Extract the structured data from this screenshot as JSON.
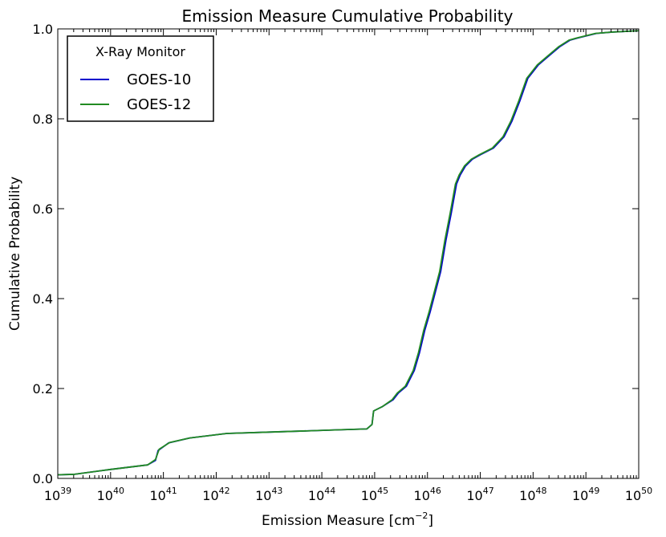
{
  "chart_data": {
    "type": "line",
    "title": "Emission Measure Cumulative Probability",
    "xlabel": "Emission Measure [cm",
    "xlabel_exponent": "−2",
    "xlabel_close": "]",
    "ylabel": "Cumulative Probability",
    "xscale": "log",
    "xlim_exp": [
      39,
      50
    ],
    "ylim": [
      0.0,
      1.0
    ],
    "x_tick_base": "10",
    "x_tick_exponents": [
      "39",
      "40",
      "41",
      "42",
      "43",
      "44",
      "45",
      "46",
      "47",
      "48",
      "49",
      "50"
    ],
    "y_tick_labels": [
      "0.0",
      "0.2",
      "0.4",
      "0.6",
      "0.8",
      "1.0"
    ],
    "y_tick_values": [
      0.0,
      0.2,
      0.4,
      0.6,
      0.8,
      1.0
    ],
    "legend": {
      "title": "X-Ray Monitor",
      "placement": "top-left",
      "entries": [
        "GOES-10",
        "GOES-12"
      ]
    },
    "series": [
      {
        "name": "GOES-10",
        "color": "#0000cc",
        "log10_x": [
          39.0,
          39.3,
          40.0,
          40.7,
          40.85,
          40.9,
          41.1,
          41.5,
          42.2,
          43.0,
          43.8,
          44.3,
          44.85,
          44.95,
          44.98,
          45.15,
          45.35,
          45.45,
          45.6,
          45.75,
          45.85,
          45.95,
          46.05,
          46.15,
          46.25,
          46.35,
          46.45,
          46.55,
          46.62,
          46.72,
          46.85,
          47.0,
          47.25,
          47.45,
          47.6,
          47.75,
          47.9,
          48.1,
          48.3,
          48.5,
          48.7,
          48.85,
          49.2,
          49.5,
          50.0
        ],
        "y": [
          0.008,
          0.009,
          0.02,
          0.03,
          0.04,
          0.062,
          0.079,
          0.09,
          0.1,
          0.103,
          0.106,
          0.108,
          0.11,
          0.12,
          0.15,
          0.16,
          0.175,
          0.19,
          0.205,
          0.24,
          0.28,
          0.33,
          0.37,
          0.415,
          0.46,
          0.53,
          0.59,
          0.655,
          0.675,
          0.695,
          0.71,
          0.72,
          0.735,
          0.76,
          0.795,
          0.84,
          0.89,
          0.92,
          0.94,
          0.96,
          0.975,
          0.98,
          0.99,
          0.993,
          0.996
        ]
      },
      {
        "name": "GOES-12",
        "color": "#228b22",
        "log10_x": [
          39.0,
          39.3,
          40.0,
          40.7,
          40.85,
          40.92,
          41.12,
          41.5,
          42.2,
          43.0,
          43.8,
          44.3,
          44.85,
          44.95,
          44.98,
          45.15,
          45.33,
          45.43,
          45.58,
          45.73,
          45.83,
          45.93,
          46.03,
          46.13,
          46.23,
          46.33,
          46.43,
          46.53,
          46.6,
          46.7,
          46.83,
          46.98,
          47.23,
          47.43,
          47.58,
          47.73,
          47.88,
          48.08,
          48.28,
          48.48,
          48.68,
          48.83,
          49.18,
          49.5,
          50.0
        ],
        "y": [
          0.008,
          0.009,
          0.02,
          0.03,
          0.042,
          0.065,
          0.08,
          0.09,
          0.1,
          0.103,
          0.106,
          0.108,
          0.11,
          0.12,
          0.15,
          0.16,
          0.175,
          0.19,
          0.205,
          0.24,
          0.28,
          0.33,
          0.37,
          0.415,
          0.46,
          0.53,
          0.59,
          0.655,
          0.675,
          0.695,
          0.71,
          0.72,
          0.735,
          0.76,
          0.795,
          0.84,
          0.89,
          0.92,
          0.94,
          0.96,
          0.975,
          0.98,
          0.99,
          0.993,
          0.996
        ]
      }
    ]
  }
}
